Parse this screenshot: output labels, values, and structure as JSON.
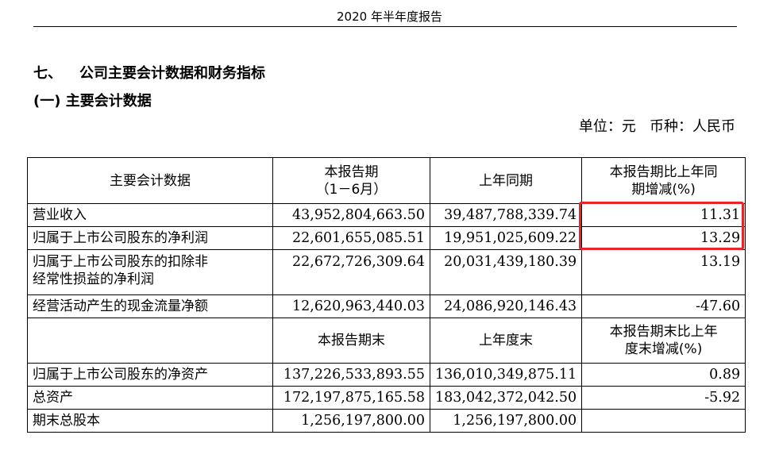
{
  "header": {
    "title": "2020 年半年度报告"
  },
  "section": {
    "number": "七、",
    "title": "公司主要会计数据和财务指标"
  },
  "subsection": {
    "title": "(一) 主要会计数据"
  },
  "unit": {
    "unit_label": "单位：元",
    "currency_label": "币种：人民币"
  },
  "table": {
    "header1": {
      "col1": "主要会计数据",
      "col2_line1": "本报告期",
      "col2_line2": "（1－6月）",
      "col3": "上年同期",
      "col4_line1": "本报告期比上年同",
      "col4_line2": "期增减(%)"
    },
    "rows1": [
      {
        "label": "营业收入",
        "current": "43,952,804,663.50",
        "previous": "39,487,788,339.74",
        "change": "11.31"
      },
      {
        "label": "归属于上市公司股东的净利润",
        "current": "22,601,655,085.51",
        "previous": "19,951,025,609.22",
        "change": "13.29"
      },
      {
        "label_line1": "归属于上市公司股东的扣除非",
        "label_line2": "经常性损益的净利润",
        "current": "22,672,726,309.64",
        "previous": "20,031,439,180.39",
        "change": "13.19"
      },
      {
        "label": "经营活动产生的现金流量净额",
        "current": "12,620,963,440.03",
        "previous": "24,086,920,146.43",
        "change": "-47.60"
      }
    ],
    "header2": {
      "col1": "",
      "col2": "本报告期末",
      "col3": "上年度末",
      "col4_line1": "本报告期末比上年",
      "col4_line2": "度末增减(%)"
    },
    "rows2": [
      {
        "label": "归属于上市公司股东的净资产",
        "current": "137,226,533,893.55",
        "previous": "136,010,349,875.11",
        "change": "0.89"
      },
      {
        "label": "总资产",
        "current": "172,197,875,165.58",
        "previous": "183,042,372,042.50",
        "change": "-5.92"
      },
      {
        "label": "期末总股本",
        "current": "1,256,197,800.00",
        "previous": "1,256,197,800.00",
        "change": ""
      }
    ]
  },
  "highlight": {
    "color": "#e8242a"
  }
}
